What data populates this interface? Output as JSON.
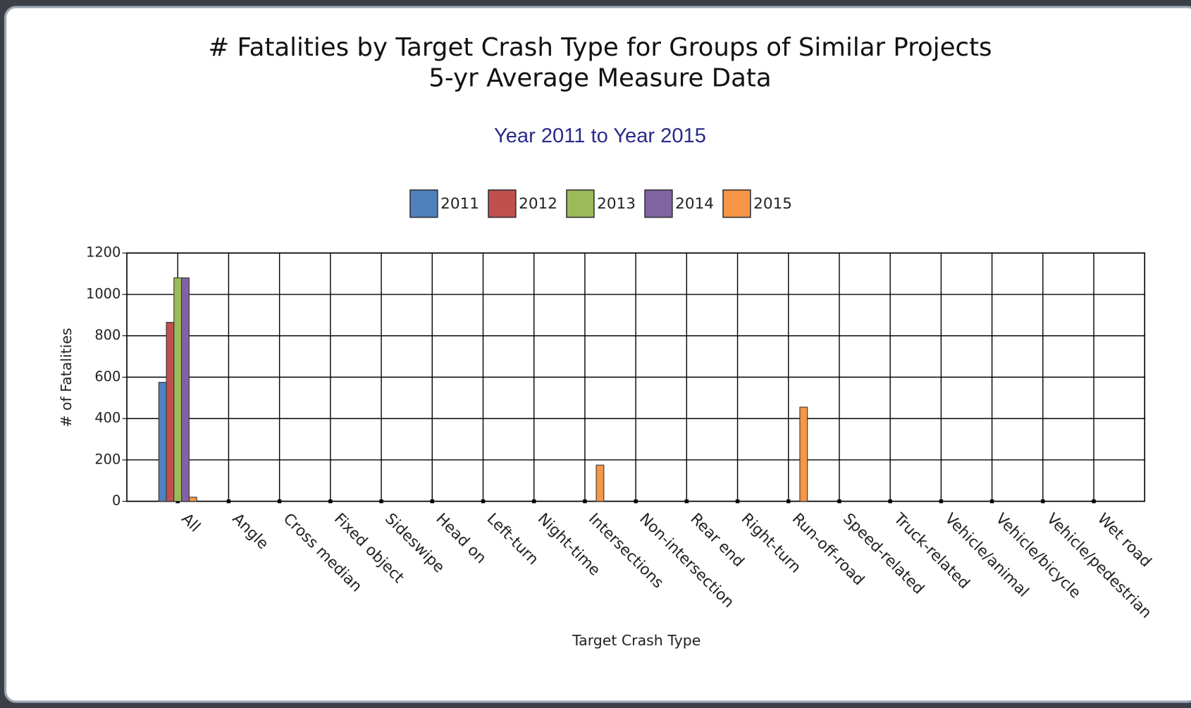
{
  "chart_data": {
    "type": "bar",
    "title": "# Fatalities by Target Crash Type for Groups of Similar Projects",
    "subtitle": "5-yr Average Measure Data",
    "period": "Year 2011 to Year 2015",
    "xlabel": "Target Crash Type",
    "ylabel": "# of Fatalities",
    "categories": [
      "All",
      "Angle",
      "Cross median",
      "Fixed object",
      "Sideswipe",
      "Head on",
      "Left-turn",
      "Night-time",
      "Intersections",
      "Non-intersection",
      "Rear end",
      "Right-turn",
      "Run-off-road",
      "Speed-related",
      "Truck-related",
      "Vehicle/animal",
      "Vehicle/bicycle",
      "Vehicle/pedestrian",
      "Wet road"
    ],
    "series": [
      {
        "name": "2011",
        "color": "#4f81bd",
        "values": [
          575,
          0,
          0,
          0,
          0,
          0,
          0,
          0,
          0,
          0,
          0,
          0,
          0,
          0,
          0,
          0,
          0,
          0,
          0
        ]
      },
      {
        "name": "2012",
        "color": "#c0504d",
        "values": [
          865,
          0,
          0,
          0,
          0,
          0,
          0,
          0,
          0,
          0,
          0,
          0,
          0,
          0,
          0,
          0,
          0,
          0,
          0
        ]
      },
      {
        "name": "2013",
        "color": "#9bbb59",
        "values": [
          1080,
          0,
          0,
          0,
          0,
          0,
          0,
          0,
          0,
          0,
          0,
          0,
          0,
          0,
          0,
          0,
          0,
          0,
          0
        ]
      },
      {
        "name": "2014",
        "color": "#8064a2",
        "values": [
          1080,
          0,
          0,
          0,
          0,
          0,
          0,
          0,
          0,
          0,
          0,
          0,
          0,
          0,
          0,
          0,
          0,
          0,
          0
        ]
      },
      {
        "name": "2015",
        "color": "#f79646",
        "values": [
          20,
          0,
          0,
          0,
          0,
          0,
          0,
          0,
          175,
          0,
          0,
          0,
          455,
          0,
          0,
          0,
          0,
          0,
          0
        ]
      }
    ],
    "ylim": [
      0,
      1200
    ],
    "yticks": [
      0,
      200,
      400,
      600,
      800,
      1000,
      1200
    ],
    "grid": true,
    "legend": "top"
  }
}
